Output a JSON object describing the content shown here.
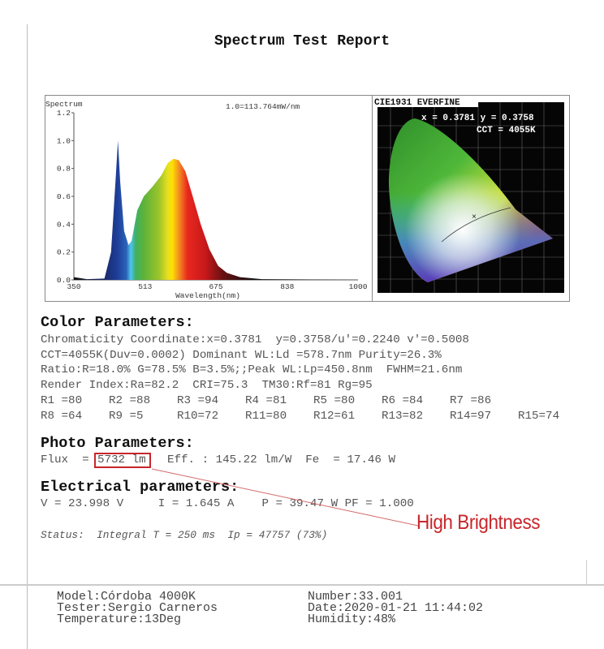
{
  "title": "Spectrum Test Report",
  "chart_data": {
    "type": "area",
    "title": "Spectrum",
    "annotation": "1.0=113.764mW/nm",
    "xlabel": "Wavelength(nm)",
    "ylabel": "",
    "xlim": [
      350,
      1000
    ],
    "ylim": [
      0,
      1.2
    ],
    "x_ticks": [
      "350",
      "513",
      "675",
      "838",
      "1000"
    ],
    "y_ticks": [
      "0.0",
      "0.2",
      "0.4",
      "0.6",
      "0.8",
      "1.0",
      "1.2"
    ],
    "x": [
      350,
      380,
      420,
      435,
      445,
      450.8,
      456,
      465,
      475,
      482,
      495,
      510,
      530,
      550,
      565,
      578,
      590,
      605,
      620,
      640,
      660,
      680,
      700,
      730,
      780,
      1000
    ],
    "y": [
      0.02,
      0.005,
      0.01,
      0.2,
      0.7,
      1.0,
      0.7,
      0.35,
      0.25,
      0.28,
      0.5,
      0.6,
      0.67,
      0.75,
      0.84,
      0.87,
      0.86,
      0.78,
      0.62,
      0.4,
      0.22,
      0.1,
      0.05,
      0.02,
      0.005,
      0
    ]
  },
  "cie": {
    "label": "CIE1931 EVERFINE",
    "coords": "x = 0.3781 y = 0.3758",
    "cct": "CCT = 4055K"
  },
  "color_params": {
    "heading": "Color Parameters:",
    "lines": [
      "Chromaticity Coordinate:x=0.3781  y=0.3758/u'=0.2240 v'=0.5008",
      "CCT=4055K(Duv=0.0002) Dominant WL:Ld =578.7nm Purity=26.3%",
      "Ratio:R=18.0% G=78.5% B=3.5%;;Peak WL:Lp=450.8nm  FWHM=21.6nm",
      "Render Index:Ra=82.2  CRI=75.3  TM30:Rf=81 Rg=95"
    ],
    "r_row1": [
      "R1 =80",
      "R2 =88",
      "R3 =94",
      "R4 =81",
      "R5 =80",
      "R6 =84",
      "R7 =86"
    ],
    "r_row2": [
      "R8 =64",
      "R9 =5",
      "R10=72",
      "R11=80",
      "R12=61",
      "R13=82",
      "R14=97",
      "R15=74"
    ]
  },
  "photo_params": {
    "heading": "Photo Parameters:",
    "flux_label": "Flux  =",
    "flux_value": "5732 lm",
    "rest": "Eff. : 145.22 lm/W  Fe  = 17.46 W"
  },
  "electrical": {
    "heading": "Electrical parameters:",
    "line": "V = 23.998 V     I = 1.645 A    P = 39.47 W PF = 1.000"
  },
  "status": "Status:  Integral T = 250 ms  Ip = 47757 (73%)",
  "annotation": {
    "text": "High Brightness",
    "color": "#c8262b"
  },
  "footer": {
    "model": "Model:Córdoba 4000K",
    "tester": "Tester:Sergio Carneros",
    "temperature": "Temperature:13Deg",
    "number": "Number:33.001",
    "date": "Date:2020-01-21 11:44:02",
    "humidity": "Humidity:48%"
  }
}
